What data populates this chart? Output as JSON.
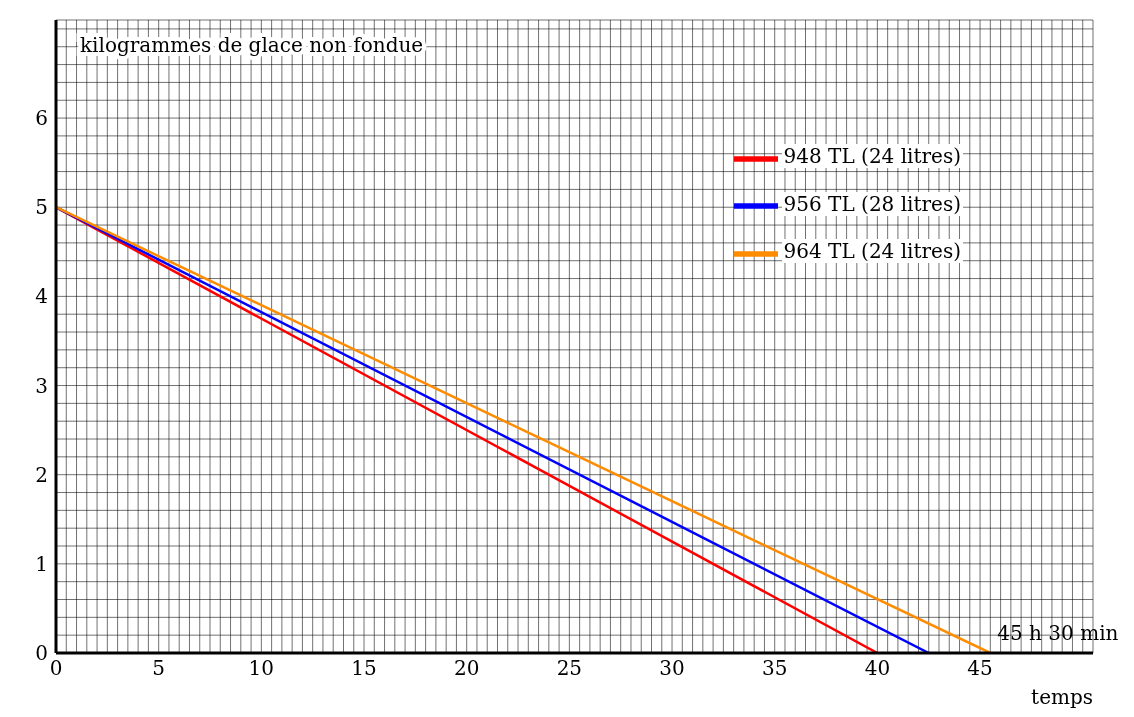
{
  "chart_data": {
    "type": "line",
    "xlabel": "temps",
    "ylabel": "kilogrammes de glace non fondue",
    "series": [
      {
        "name": "948 TL (24 litres)",
        "color": "#ff0000",
        "x": [
          0,
          40
        ],
        "values": [
          5,
          0
        ]
      },
      {
        "name": "956 TL (28 litres)",
        "color": "#0000ff",
        "x": [
          0,
          42.5
        ],
        "values": [
          5,
          0
        ]
      },
      {
        "name": "964 TL (24 litres)",
        "color": "#ff8c00",
        "x": [
          0,
          45.5
        ],
        "values": [
          5,
          0
        ]
      }
    ],
    "annotations": [
      {
        "text": "45 h 30 min",
        "x": 45.5,
        "y": 0
      }
    ],
    "xlim": [
      0,
      50.5
    ],
    "ylim": [
      0,
      7.1
    ],
    "xticks": [
      0,
      {
        "value": 0.5,
        "label": null
      },
      {
        "value": 1,
        "label": null
      },
      {
        "value": 1.5,
        "label": null
      },
      {
        "value": 2,
        "label": null
      },
      {
        "value": 2.5,
        "label": null
      },
      {
        "value": 3,
        "label": null
      },
      {
        "value": 3.5,
        "label": null
      },
      {
        "value": 4,
        "label": null
      },
      {
        "value": 4.5,
        "label": null
      },
      5,
      {
        "value": 5.5,
        "label": null
      },
      {
        "value": 6,
        "label": null
      },
      {
        "value": 6.5,
        "label": null
      },
      {
        "value": 7,
        "label": null
      },
      {
        "value": 7.5,
        "label": null
      },
      {
        "value": 8,
        "label": null
      },
      {
        "value": 8.5,
        "label": null
      },
      {
        "value": 9,
        "label": null
      },
      {
        "value": 9.5,
        "label": null
      },
      10,
      {
        "value": 10.5,
        "label": null
      },
      {
        "value": 11,
        "label": null
      },
      {
        "value": 11.5,
        "label": null
      },
      {
        "value": 12,
        "label": null
      },
      {
        "value": 12.5,
        "label": null
      },
      {
        "value": 13,
        "label": null
      },
      {
        "value": 13.5,
        "label": null
      },
      {
        "value": 14,
        "label": null
      },
      {
        "value": 14.5,
        "label": null
      },
      15,
      {
        "value": 15.5,
        "label": null
      },
      {
        "value": 16,
        "label": null
      },
      {
        "value": 16.5,
        "label": null
      },
      {
        "value": 17,
        "label": null
      },
      {
        "value": 17.5,
        "label": null
      },
      {
        "value": 18,
        "label": null
      },
      {
        "value": 18.5,
        "label": null
      },
      {
        "value": 19,
        "label": null
      },
      {
        "value": 19.5,
        "label": null
      },
      20,
      {
        "value": 20.5,
        "label": null
      },
      {
        "value": 21,
        "label": null
      },
      {
        "value": 21.5,
        "label": null
      },
      {
        "value": 22,
        "label": null
      },
      {
        "value": 22.5,
        "label": null
      },
      {
        "value": 23,
        "label": null
      },
      {
        "value": 23.5,
        "label": null
      },
      {
        "value": 24,
        "label": null
      },
      {
        "value": 24.5,
        "label": null
      },
      25,
      {
        "value": 25.5,
        "label": null
      },
      {
        "value": 26,
        "label": null
      },
      {
        "value": 26.5,
        "label": null
      },
      {
        "value": 27,
        "label": null
      },
      {
        "value": 27.5,
        "label": null
      },
      {
        "value": 28,
        "label": null
      },
      {
        "value": 28.5,
        "label": null
      },
      {
        "value": 29,
        "label": null
      },
      {
        "value": 29.5,
        "label": null
      },
      30,
      {
        "value": 30.5,
        "label": null
      },
      {
        "value": 31,
        "label": null
      },
      {
        "value": 31.5,
        "label": null
      },
      {
        "value": 32,
        "label": null
      },
      {
        "value": 32.5,
        "label": null
      },
      {
        "value": 33,
        "label": null
      },
      {
        "value": 33.5,
        "label": null
      },
      {
        "value": 34,
        "label": null
      },
      {
        "value": 34.5,
        "label": null
      },
      35,
      {
        "value": 35.5,
        "label": null
      },
      {
        "value": 36,
        "label": null
      },
      {
        "value": 36.5,
        "label": null
      },
      {
        "value": 37,
        "label": null
      },
      {
        "value": 37.5,
        "label": null
      },
      {
        "value": 38,
        "label": null
      },
      {
        "value": 38.5,
        "label": null
      },
      {
        "value": 39,
        "label": null
      },
      {
        "value": 39.5,
        "label": null
      },
      40,
      {
        "value": 40.5,
        "label": null
      },
      {
        "value": 41,
        "label": null
      },
      {
        "value": 41.5,
        "label": null
      },
      {
        "value": 42,
        "label": null
      },
      {
        "value": 42.5,
        "label": null
      },
      {
        "value": 43,
        "label": null
      },
      {
        "value": 43.5,
        "label": null
      },
      {
        "value": 44,
        "label": null
      },
      {
        "value": 44.5,
        "label": null
      },
      45,
      {
        "value": 45.5,
        "label": null
      },
      {
        "value": 46,
        "label": null
      },
      {
        "value": 46.5,
        "label": null
      },
      {
        "value": 47,
        "label": null
      },
      {
        "value": 47.5,
        "label": null
      },
      {
        "value": 48,
        "label": null
      },
      {
        "value": 48.5,
        "label": null
      },
      {
        "value": 49,
        "label": null
      },
      {
        "value": 49.5,
        "label": null
      },
      {
        "value": 50,
        "label": null
      }
    ],
    "yticks": [
      0,
      {
        "value": 0.2,
        "label": null
      },
      {
        "value": 0.4,
        "label": null
      },
      {
        "value": 0.6,
        "label": null
      },
      {
        "value": 0.8,
        "label": null
      },
      1,
      {
        "value": 1.2,
        "label": null
      },
      {
        "value": 1.4,
        "label": null
      },
      {
        "value": 1.6,
        "label": null
      },
      {
        "value": 1.8,
        "label": null
      },
      2,
      {
        "value": 2.2,
        "label": null
      },
      {
        "value": 2.4,
        "label": null
      },
      {
        "value": 2.6,
        "label": null
      },
      {
        "value": 2.8,
        "label": null
      },
      3,
      {
        "value": 3.2,
        "label": null
      },
      {
        "value": 3.4,
        "label": null
      },
      {
        "value": 3.6,
        "label": null
      },
      {
        "value": 3.8,
        "label": null
      },
      4,
      {
        "value": 4.2,
        "label": null
      },
      {
        "value": 4.4,
        "label": null
      },
      {
        "value": 4.6,
        "label": null
      },
      {
        "value": 4.8,
        "label": null
      },
      5,
      {
        "value": 5.2,
        "label": null
      },
      {
        "value": 5.4,
        "label": null
      },
      {
        "value": 5.6,
        "label": null
      },
      {
        "value": 5.8,
        "label": null
      },
      6,
      {
        "value": 6.2,
        "label": null
      },
      {
        "value": 6.4,
        "label": null
      },
      {
        "value": 6.6,
        "label": null
      },
      {
        "value": 6.8,
        "label": null
      },
      {
        "value": 7,
        "label": null
      }
    ],
    "grid": true,
    "legend": "top right",
    "marker": "none",
    "line_style": "solid"
  }
}
